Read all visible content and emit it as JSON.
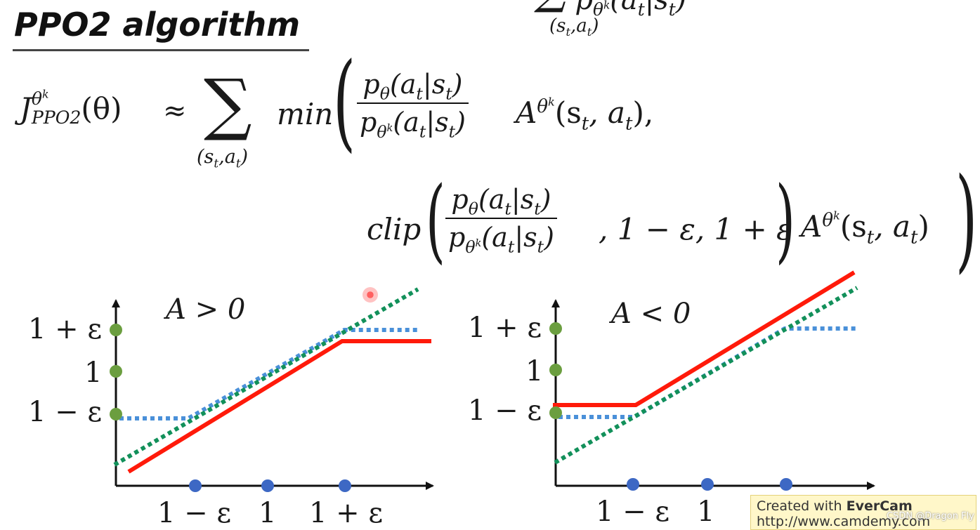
{
  "title": "PPO2 algorithm",
  "top_fragment": {
    "sum_sub": "(s",
    "sum_sub_t": "t",
    "sum_sub_mid": ",a",
    "sum_sub_t2": "t",
    "sum_sub_close": ")",
    "denom": "p",
    "denom_sub": "θ",
    "denom_sub_sup": "k",
    "denom_arg": "(a",
    "denom_arg_t": "t",
    "denom_arg_mid": "|s",
    "denom_arg_t2": "t",
    "denom_arg_close": ")"
  },
  "formula": {
    "J": "J",
    "J_sup": "θ",
    "J_sup_sup": "k",
    "J_sub": "PPO2",
    "J_arg": "(θ)",
    "approx": "≈",
    "sum": "∑",
    "sum_sub": "(s",
    "sum_sub_t": "t",
    "sum_sub_mid": ",a",
    "sum_sub_t2": "t",
    "sum_sub_close": ")",
    "min": "min",
    "open_paren": "(",
    "num_p": "p",
    "num_p_sub": "θ",
    "num_arg": "(a",
    "num_arg_t": "t",
    "num_arg_mid": "|s",
    "num_arg_t2": "t",
    "num_arg_close": ")",
    "den_p": "p",
    "den_p_sub": "θ",
    "den_p_sub_sup": "k",
    "den_arg": "(a",
    "den_arg_t": "t",
    "den_arg_mid": "|s",
    "den_arg_t2": "t",
    "den_arg_close": ")",
    "A": "A",
    "A_sup": "θ",
    "A_sup_sup": "k",
    "A_arg": "(s",
    "A_arg_t": "t",
    "A_arg_mid": ", a",
    "A_arg_t2": "t",
    "A_arg_close": "),",
    "clip": "clip",
    "clip_open": "(",
    "clip_bounds": ", 1 − ε, 1 + ε",
    "clip_close": ")",
    "close_paren": ")",
    "A2_arg_close": ")"
  },
  "charts": [
    {
      "label": "A > 0",
      "y_ticks": [
        "1 + ε",
        "1",
        "1 − ε"
      ],
      "x_ticks": [
        "1 − ε",
        "1",
        "1 + ε"
      ]
    },
    {
      "label": "A < 0",
      "y_ticks": [
        "1 + ε",
        "1",
        "1 − ε"
      ],
      "x_ticks": [
        "1 − ε",
        "1"
      ]
    }
  ],
  "colors": {
    "red_line": "#ff1a0a",
    "green_dotted": "#12905a",
    "blue_dotted": "#4a90d9",
    "axis": "#111111",
    "y_dot": "#6b9e3f",
    "x_dot": "#3d68c4"
  },
  "watermark": {
    "prefix": "Created with ",
    "brand": "EverCam",
    "url": "http://www.camdemy.com"
  },
  "csdn": "CSDN @Dragon Fly"
}
